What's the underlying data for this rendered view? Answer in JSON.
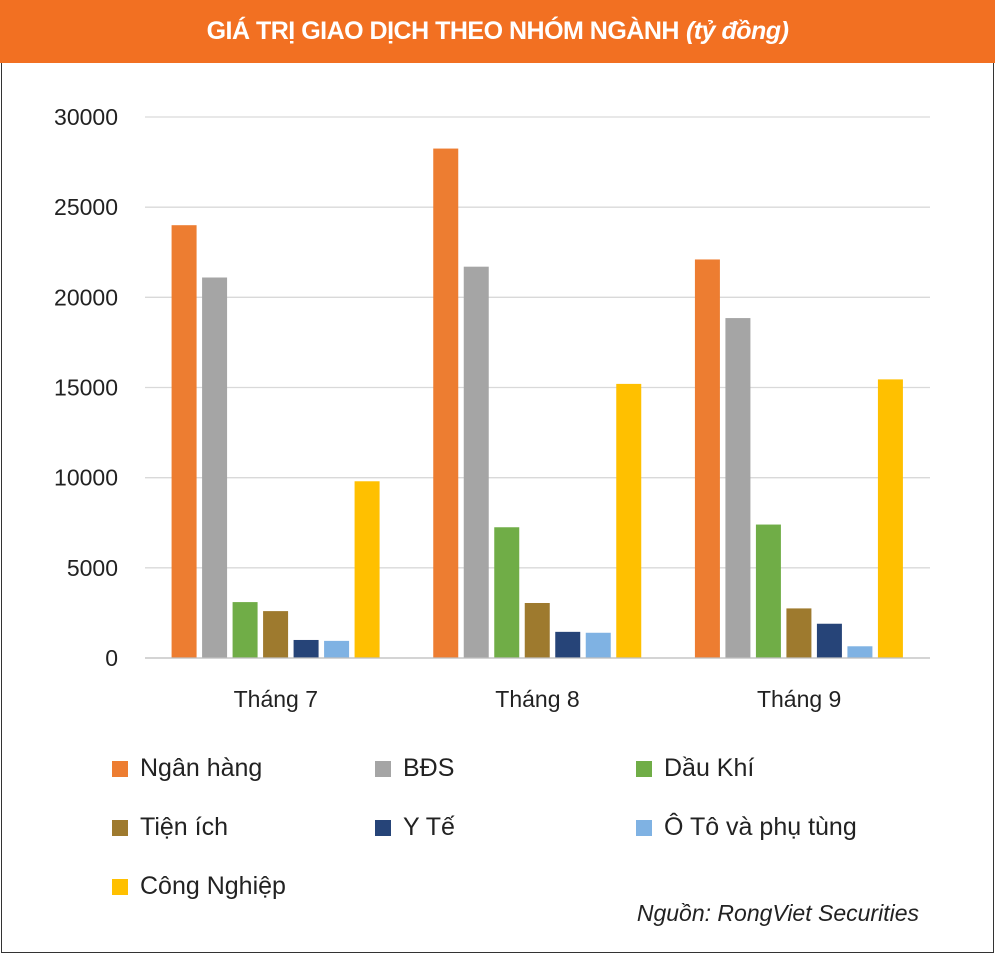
{
  "title": "GIÁ TRỊ GIAO DỊCH THEO NHÓM NGÀNH",
  "title_unit": "(tỷ đồng)",
  "source": "Nguồn: RongViet Securities",
  "chart_data": {
    "type": "bar",
    "title": "GIÁ TRỊ GIAO DỊCH THEO NHÓM NGÀNH (tỷ đồng)",
    "categories": [
      "Tháng 7",
      "Tháng 8",
      "Tháng 9"
    ],
    "ylim": [
      0,
      30000
    ],
    "yticks": [
      0,
      5000,
      10000,
      15000,
      20000,
      25000,
      30000
    ],
    "grid": true,
    "legend_placement": "bottom",
    "series": [
      {
        "name": "Ngân hàng",
        "color": "#ed7d31",
        "values": [
          24000,
          28250,
          22100
        ]
      },
      {
        "name": "BĐS",
        "color": "#a5a5a5",
        "values": [
          21100,
          21700,
          18850
        ]
      },
      {
        "name": "Dầu Khí",
        "color": "#70ad47",
        "values": [
          3100,
          7250,
          7400
        ]
      },
      {
        "name": "Tiện ích",
        "color": "#9e7a2e",
        "values": [
          2600,
          3050,
          2750
        ]
      },
      {
        "name": "Y Tế",
        "color": "#264478",
        "values": [
          1000,
          1450,
          1900
        ]
      },
      {
        "name": "Ô Tô và phụ tùng",
        "color": "#7fb2e3",
        "values": [
          950,
          1400,
          650
        ]
      },
      {
        "name": "Công Nghiệp",
        "color": "#ffc000",
        "values": [
          9800,
          15200,
          15450
        ]
      }
    ]
  }
}
